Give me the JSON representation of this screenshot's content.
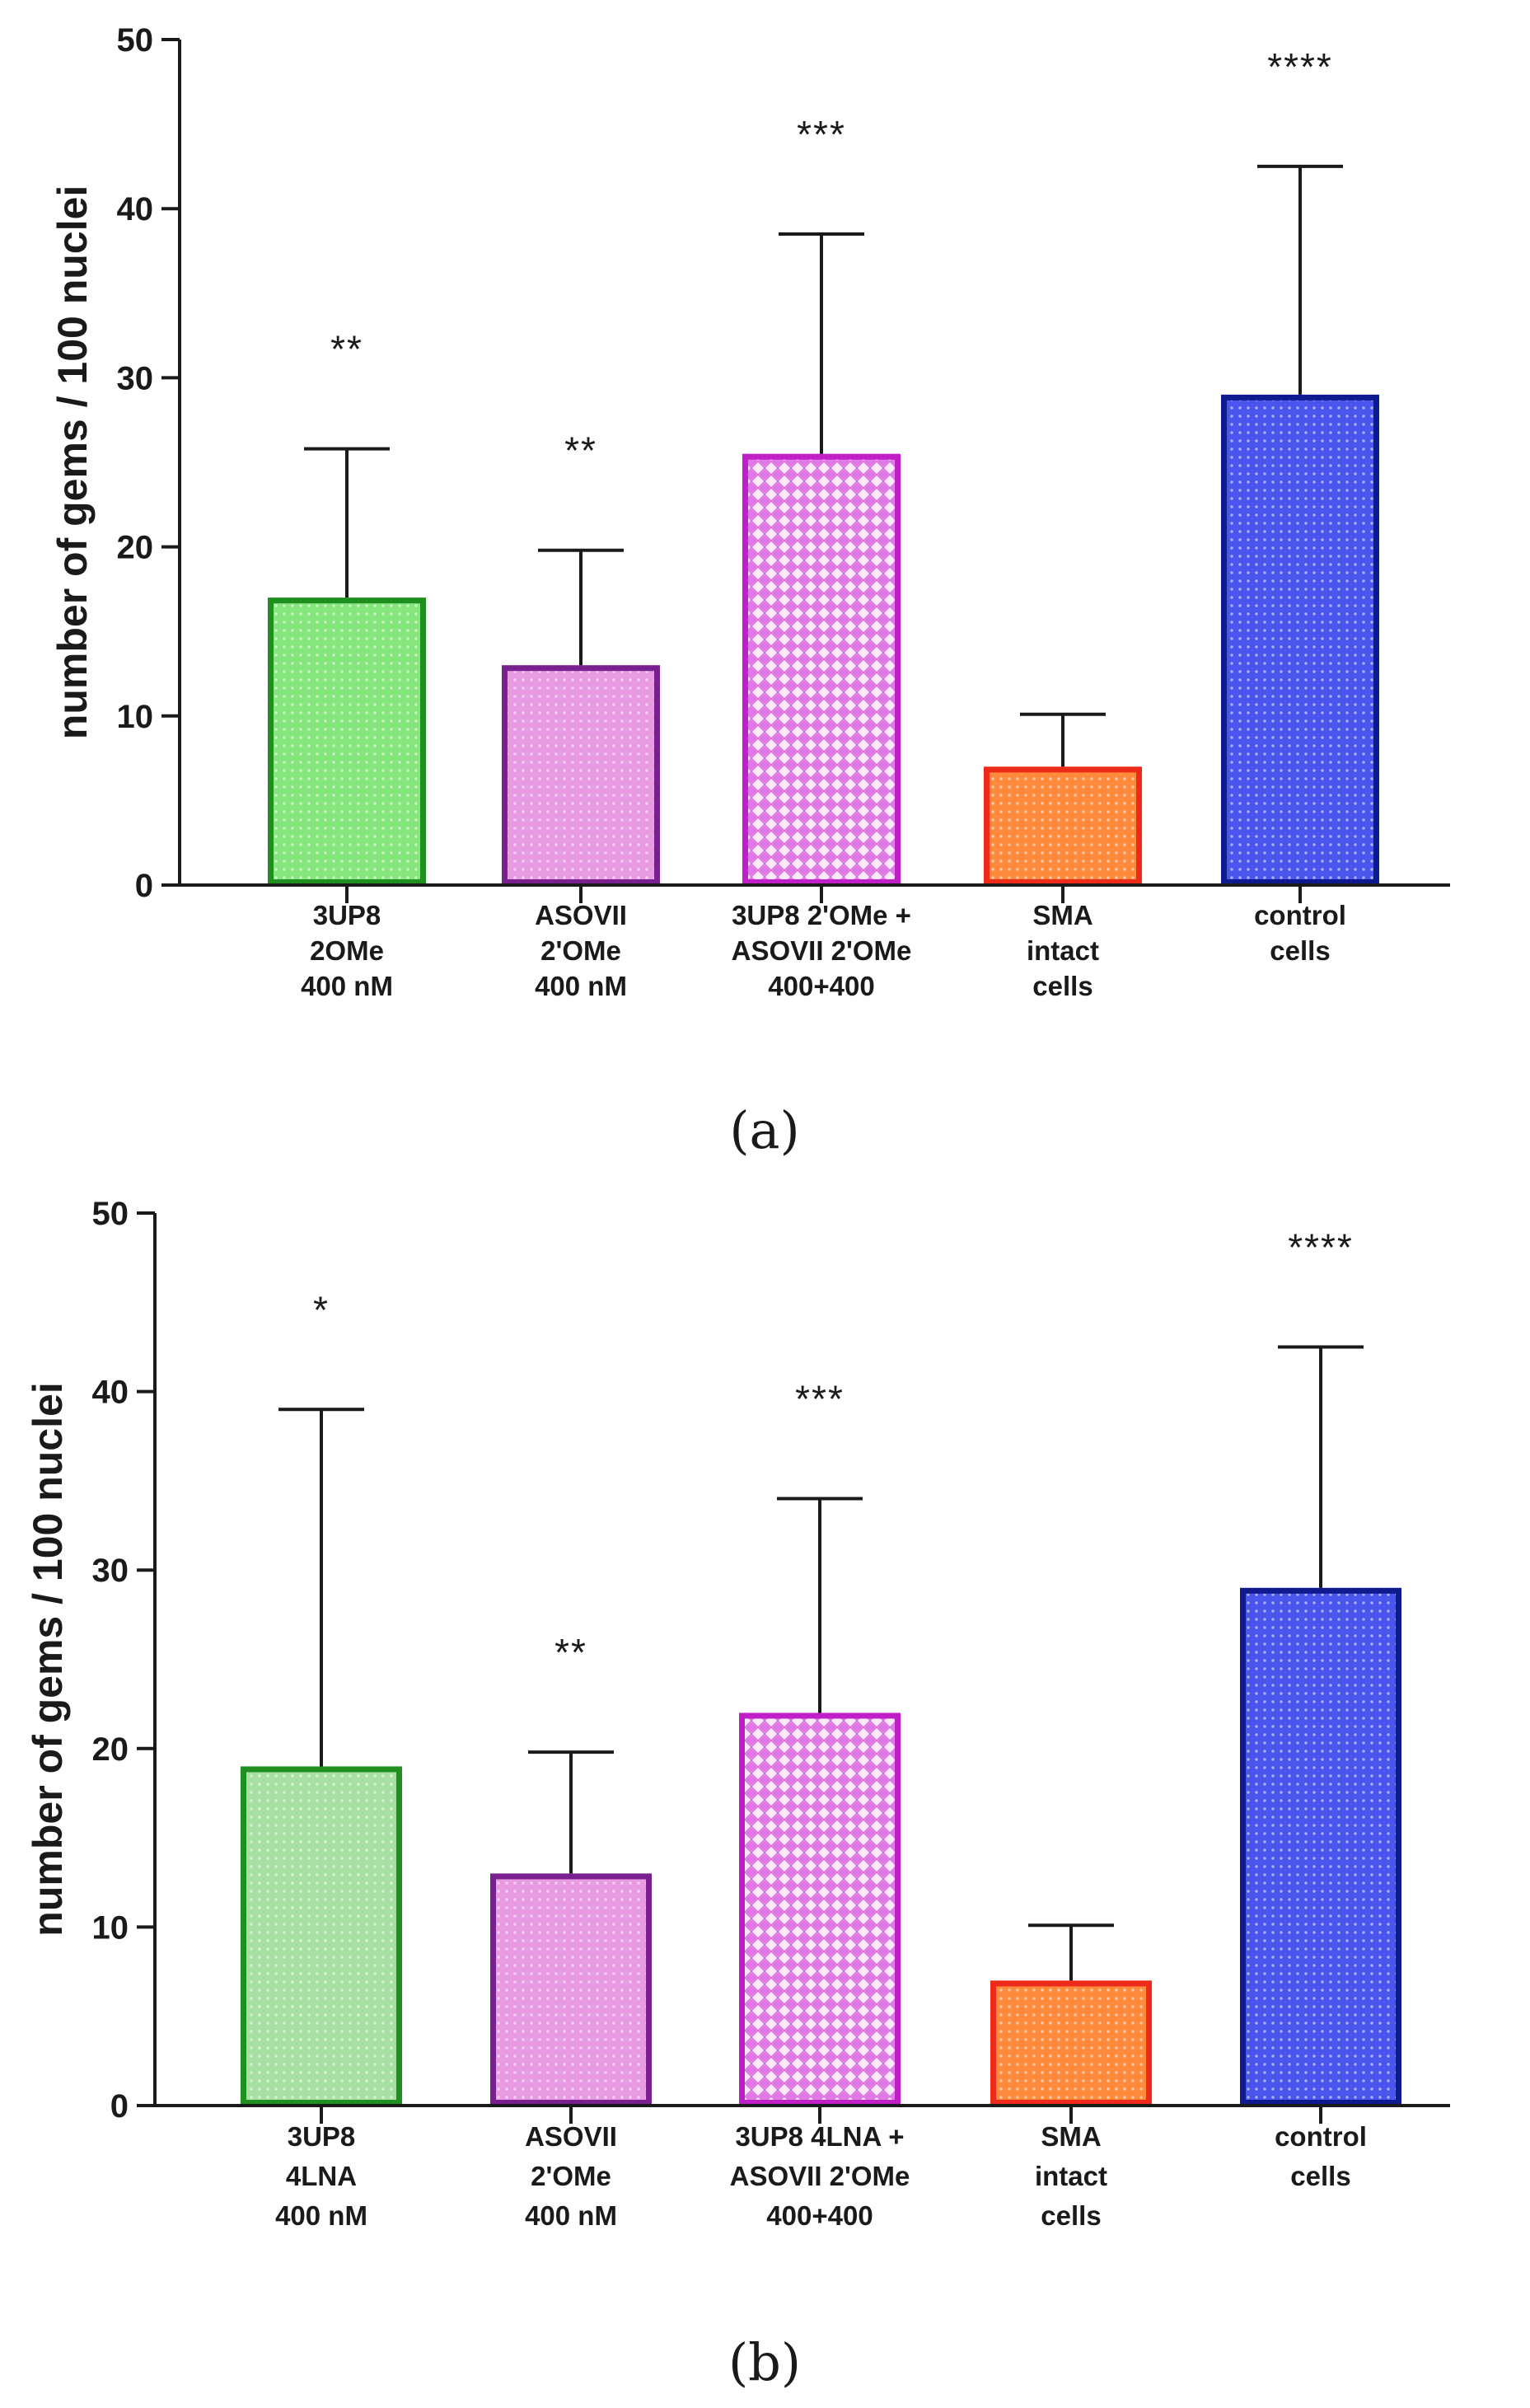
{
  "chart_data": [
    {
      "type": "bar",
      "panel_label": "(a)",
      "ylabel": "number of gems / 100 nuclei",
      "ylim": [
        0,
        50
      ],
      "yticks": [
        0,
        10,
        20,
        30,
        40,
        50
      ],
      "categories": [
        [
          "3UP8",
          "2OMe",
          "400 nM"
        ],
        [
          "ASOVII",
          "2'OMe",
          "400 nM"
        ],
        [
          "3UP8 2'OMe +",
          "ASOVII 2'OMe",
          "400+400"
        ],
        [
          "SMA",
          "intact",
          "cells"
        ],
        [
          "control",
          "cells"
        ]
      ],
      "values": [
        17,
        13,
        25.5,
        7,
        29
      ],
      "errors": [
        8.8,
        6.8,
        13,
        3.1,
        13.5
      ],
      "significance": [
        "**",
        "**",
        "***",
        "",
        "****"
      ],
      "colors": {
        "fill": [
          "#86e67e",
          "#e89ae2",
          "#e07ae6",
          "#ff8a3c",
          "#4a55ee"
        ],
        "stroke": [
          "#1f8f1f",
          "#7a1f8f",
          "#c01fc8",
          "#ee2a1a",
          "#101a8f"
        ]
      },
      "patterns": [
        "dots",
        "dots",
        "diamonds",
        "dots",
        "dots"
      ]
    },
    {
      "type": "bar",
      "panel_label": "(b)",
      "ylabel": "number of gems / 100 nuclei",
      "ylim": [
        0,
        50
      ],
      "yticks": [
        0,
        10,
        20,
        30,
        40,
        50
      ],
      "categories": [
        [
          "3UP8",
          "4LNA",
          "400 nM"
        ],
        [
          "ASOVII",
          "2'OMe",
          "400 nM"
        ],
        [
          "3UP8 4LNA +",
          "ASOVII 2'OMe",
          "400+400"
        ],
        [
          "SMA",
          "intact",
          "cells"
        ],
        [
          "control",
          "cells"
        ]
      ],
      "values": [
        19,
        13,
        22,
        7,
        29
      ],
      "errors": [
        20,
        6.8,
        12,
        3.1,
        13.5
      ],
      "significance": [
        "*",
        "**",
        "***",
        "",
        "****"
      ],
      "colors": {
        "fill": [
          "#a8e0a4",
          "#e89ae2",
          "#e07ae6",
          "#ff8a3c",
          "#4a55ee"
        ],
        "stroke": [
          "#1f8f1f",
          "#7a1f8f",
          "#c01fc8",
          "#ee2a1a",
          "#101a8f"
        ]
      },
      "patterns": [
        "dots",
        "dots",
        "diamonds",
        "dots",
        "dots"
      ]
    }
  ]
}
